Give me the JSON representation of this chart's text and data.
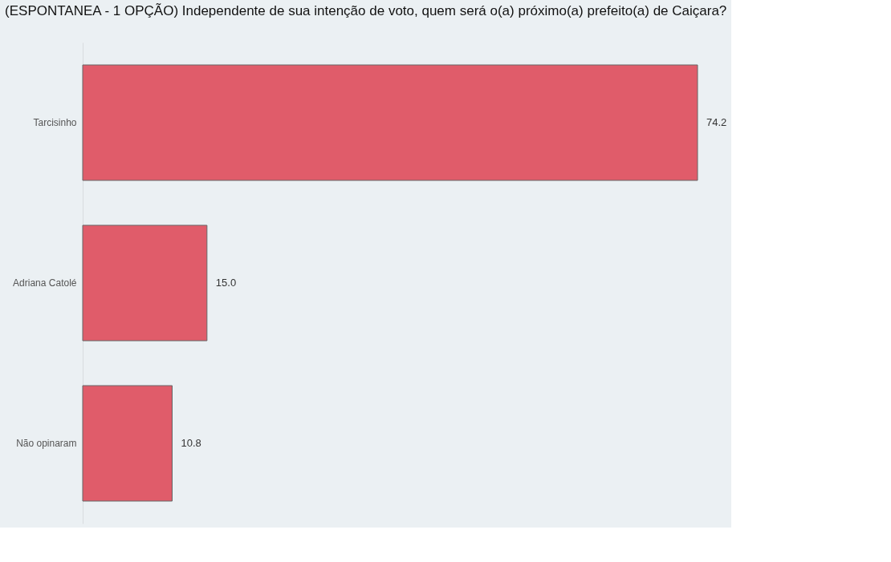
{
  "chart_data": {
    "type": "bar",
    "orientation": "horizontal",
    "title": "(ESPONTANEA - 1 OPÇÃO) Independente de sua intenção de voto, quem será o(a) próximo(a) prefeito(a) de Caiçara?",
    "categories": [
      "Tarcisinho",
      "Adriana Catolé",
      "Não opinaram"
    ],
    "values": [
      74.2,
      15.0,
      10.8
    ],
    "value_labels": [
      "74.2",
      "15.0",
      "10.8"
    ],
    "color": "#e05c6a",
    "grid": false
  }
}
